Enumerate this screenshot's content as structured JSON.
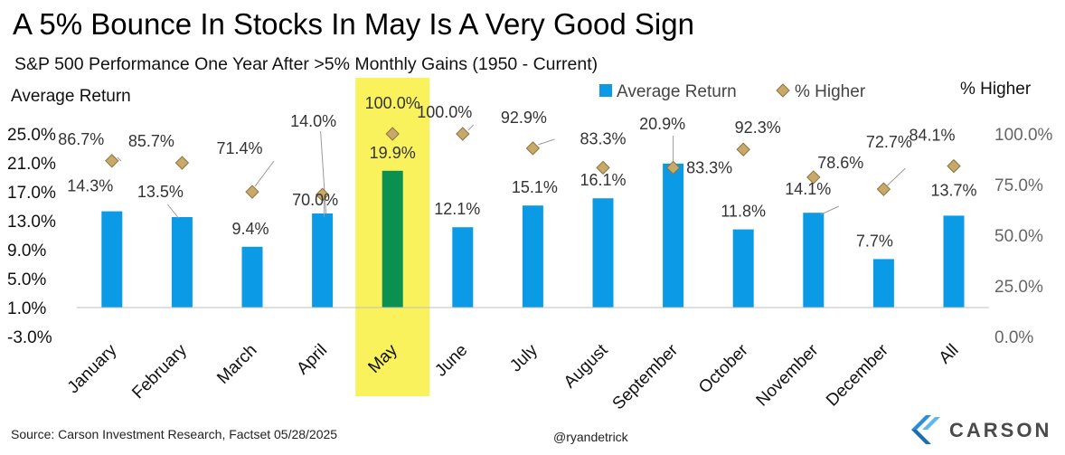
{
  "header": {
    "title": "A 5% Bounce In Stocks In May Is A Very Good Sign",
    "subtitle": "S&P 500 Performance One Year After >5% Monthly Gains (1950 - Current)"
  },
  "footer": {
    "source": "Source: Carson Investment Research, Factset 05/28/2025",
    "handle": "@ryandetrick",
    "logo_text": "CARSON"
  },
  "colors": {
    "bar": "#0b9be6",
    "highlight_bar": "#0a9150",
    "highlight_band": "#f9f25c",
    "marker": "#c8a96a",
    "marker_stroke": "#8a7440"
  },
  "chart_data": {
    "type": "bar",
    "categories": [
      "January",
      "February",
      "March",
      "April",
      "May",
      "June",
      "July",
      "August",
      "September",
      "October",
      "November",
      "December",
      "All"
    ],
    "highlight_category": "May",
    "series": [
      {
        "name": "Average Return",
        "axis": "left",
        "kind": "bar",
        "values": [
          14.3,
          13.5,
          9.4,
          14.0,
          19.9,
          12.1,
          15.1,
          16.1,
          20.9,
          11.8,
          14.1,
          7.7,
          13.7
        ],
        "labels": [
          "14.3%",
          "13.5%",
          "9.4%",
          "14.0%",
          "19.9%",
          "12.1%",
          "15.1%",
          "16.1%",
          "20.9%",
          "11.8%",
          "14.1%",
          "7.7%",
          "13.7%"
        ]
      },
      {
        "name": "% Higher",
        "axis": "right",
        "kind": "marker",
        "values": [
          86.7,
          85.7,
          71.4,
          70.0,
          100.0,
          100.0,
          92.9,
          83.3,
          83.3,
          92.3,
          78.6,
          72.7,
          84.1
        ],
        "labels": [
          "86.7%",
          "85.7%",
          "71.4%",
          "70.0%",
          "100.0%",
          "100.0%",
          "92.9%",
          "83.3%",
          "83.3%",
          "92.3%",
          "78.6%",
          "72.7%",
          "84.1%"
        ]
      }
    ],
    "left_axis": {
      "label": "Average Return",
      "range": [
        -3.0,
        25.0
      ],
      "ticks": [
        "25.0%",
        "21.0%",
        "17.0%",
        "13.0%",
        "9.0%",
        "5.0%",
        "1.0%",
        "-3.0%"
      ],
      "tick_values": [
        25.0,
        21.0,
        17.0,
        13.0,
        9.0,
        5.0,
        1.0,
        -3.0
      ]
    },
    "right_axis": {
      "label": "% Higher",
      "range": [
        0.0,
        100.0
      ],
      "ticks": [
        "100.0%",
        "75.0%",
        "50.0%",
        "25.0%",
        "0.0%"
      ],
      "tick_values": [
        100.0,
        75.0,
        50.0,
        25.0,
        0.0
      ]
    },
    "legend_position": "top-right",
    "grid": false
  }
}
